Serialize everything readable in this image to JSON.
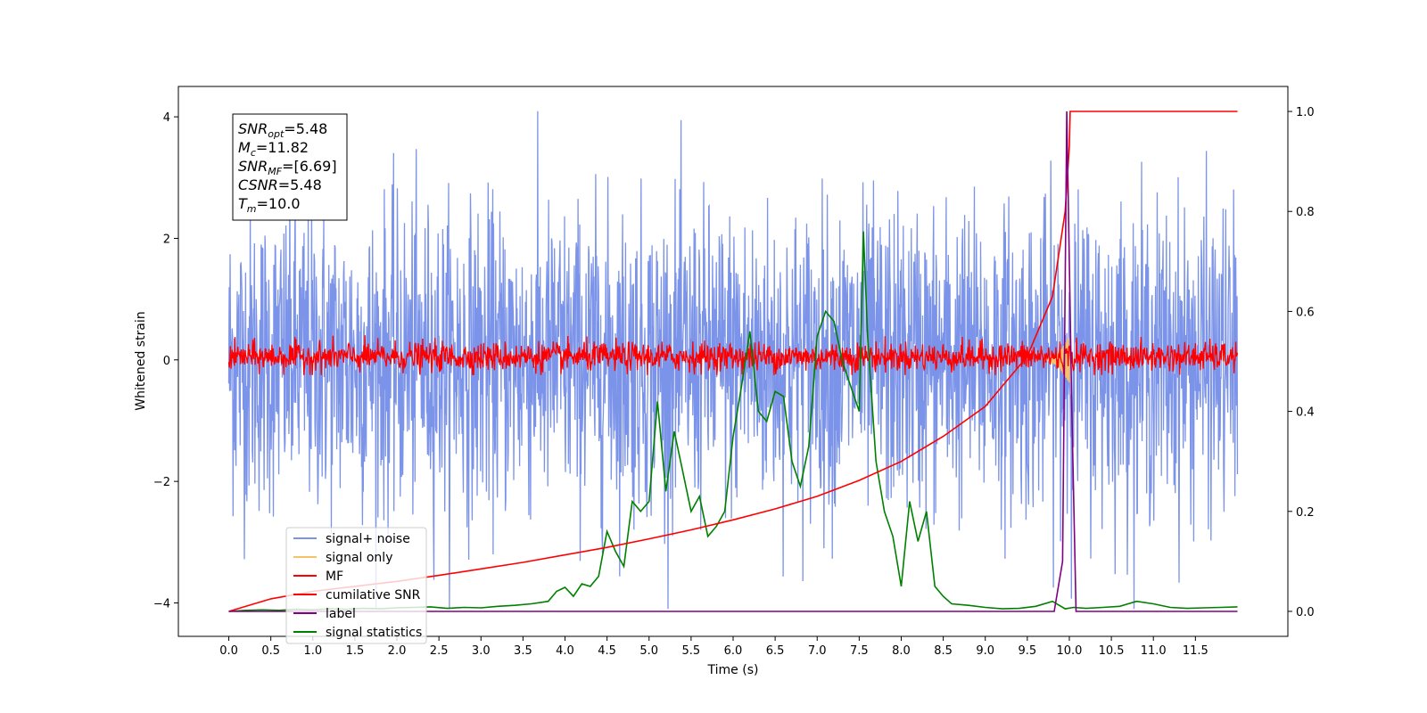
{
  "chart_data": {
    "type": "line",
    "xlabel": "Time (s)",
    "ylabel": "Whitened strain",
    "xlim": [
      -0.6,
      12.6
    ],
    "ylim": [
      -4.55,
      4.5
    ],
    "ylim_right": [
      -0.05,
      1.05
    ],
    "x_ticks": [
      "0.0",
      "0.5",
      "1.0",
      "1.5",
      "2.0",
      "2.5",
      "3.0",
      "3.5",
      "4.0",
      "4.5",
      "5.0",
      "5.5",
      "6.0",
      "6.5",
      "7.0",
      "7.5",
      "8.0",
      "8.5",
      "9.0",
      "9.5",
      "10.0",
      "10.5",
      "11.0",
      "11.5"
    ],
    "x_tick_values": [
      0,
      0.5,
      1,
      1.5,
      2,
      2.5,
      3,
      3.5,
      4,
      4.5,
      5,
      5.5,
      6,
      6.5,
      7,
      7.5,
      8,
      8.5,
      9,
      9.5,
      10,
      10.5,
      11,
      11.5
    ],
    "y_ticks_left": [
      "−4",
      "−2",
      "0",
      "2",
      "4"
    ],
    "y_tick_values_left": [
      -4,
      -2,
      0,
      2,
      4
    ],
    "y_ticks_right": [
      "0.0",
      "0.2",
      "0.4",
      "0.6",
      "0.8",
      "1.0"
    ],
    "y_tick_values_right": [
      0,
      0.2,
      0.4,
      0.6,
      0.8,
      1.0
    ],
    "annotation": {
      "lines": [
        {
          "sym": "SNR",
          "sub": "opt",
          "val": "=5.48"
        },
        {
          "sym": "M",
          "sub": "c",
          "val": "=11.82"
        },
        {
          "sym": "SNR",
          "sub": "MF",
          "val": "=[6.69]"
        },
        {
          "sym": "CSNR",
          "sub": "",
          "val": "=5.48"
        },
        {
          "sym": "T",
          "sub": "m",
          "val": "=10.0"
        }
      ]
    },
    "legend_position": "lower-left",
    "series": [
      {
        "name": "signal+ noise",
        "color": "#7b93e8",
        "axis": "left",
        "kind": "noise",
        "x_range": [
          0,
          12
        ],
        "amplitude_range": [
          -4.1,
          4.1
        ]
      },
      {
        "name": "signal only",
        "color": "#f5c26b",
        "axis": "left",
        "kind": "chirp",
        "x_range": [
          9.7,
          10.0
        ],
        "peak_amplitude": 0.4
      },
      {
        "name": "MF",
        "color": "#ff0000",
        "axis": "left",
        "kind": "noise",
        "x_range": [
          0,
          12
        ],
        "amplitude_range": [
          -0.25,
          0.45
        ]
      },
      {
        "name": "cumilative SNR",
        "color": "#ff0000",
        "axis": "right",
        "x": [
          0,
          0.5,
          1,
          1.5,
          2,
          2.5,
          3,
          3.5,
          4,
          4.5,
          5,
          5.5,
          6,
          6.5,
          7,
          7.5,
          8,
          8.5,
          9,
          9.5,
          9.8,
          9.95,
          10.0,
          10.01,
          12
        ],
        "y": [
          0.0,
          0.025,
          0.04,
          0.05,
          0.06,
          0.072,
          0.085,
          0.098,
          0.113,
          0.128,
          0.145,
          0.163,
          0.183,
          0.205,
          0.23,
          0.262,
          0.3,
          0.35,
          0.41,
          0.51,
          0.63,
          0.8,
          0.93,
          1.0,
          1.0
        ]
      },
      {
        "name": "label",
        "color": "#800080",
        "axis": "right",
        "x": [
          0,
          9.82,
          9.92,
          9.97,
          10.03,
          10.08,
          12
        ],
        "y": [
          0,
          0,
          0.1,
          1.0,
          0.4,
          0,
          0
        ]
      },
      {
        "name": "signal statistics",
        "color": "#008000",
        "axis": "right",
        "x": [
          0,
          0.2,
          0.4,
          0.6,
          0.8,
          1.0,
          1.2,
          1.4,
          1.6,
          1.8,
          2.0,
          2.2,
          2.4,
          2.6,
          2.8,
          3.0,
          3.2,
          3.4,
          3.6,
          3.8,
          3.9,
          4.0,
          4.1,
          4.2,
          4.3,
          4.4,
          4.5,
          4.6,
          4.7,
          4.8,
          4.9,
          5.0,
          5.1,
          5.2,
          5.3,
          5.4,
          5.5,
          5.6,
          5.7,
          5.8,
          5.9,
          6.0,
          6.1,
          6.2,
          6.3,
          6.4,
          6.5,
          6.6,
          6.7,
          6.8,
          6.9,
          7.0,
          7.1,
          7.2,
          7.3,
          7.4,
          7.5,
          7.55,
          7.6,
          7.7,
          7.8,
          7.9,
          8.0,
          8.1,
          8.2,
          8.3,
          8.4,
          8.5,
          8.6,
          8.8,
          9.0,
          9.2,
          9.4,
          9.6,
          9.8,
          9.95,
          10.05,
          10.2,
          10.4,
          10.6,
          10.8,
          11.0,
          11.2,
          11.4,
          11.6,
          11.8,
          12.0
        ],
        "y": [
          0.0,
          0.002,
          0.003,
          0.002,
          0.004,
          0.003,
          0.005,
          0.004,
          0.006,
          0.005,
          0.007,
          0.008,
          0.009,
          0.006,
          0.008,
          0.007,
          0.01,
          0.012,
          0.015,
          0.02,
          0.04,
          0.048,
          0.03,
          0.055,
          0.05,
          0.07,
          0.16,
          0.12,
          0.09,
          0.22,
          0.2,
          0.22,
          0.42,
          0.24,
          0.36,
          0.28,
          0.2,
          0.23,
          0.15,
          0.17,
          0.2,
          0.35,
          0.45,
          0.56,
          0.4,
          0.38,
          0.44,
          0.43,
          0.3,
          0.25,
          0.33,
          0.55,
          0.6,
          0.58,
          0.5,
          0.45,
          0.4,
          0.76,
          0.55,
          0.3,
          0.2,
          0.15,
          0.05,
          0.22,
          0.14,
          0.2,
          0.05,
          0.03,
          0.015,
          0.012,
          0.008,
          0.005,
          0.006,
          0.01,
          0.02,
          0.005,
          0.008,
          0.006,
          0.008,
          0.01,
          0.02,
          0.015,
          0.008,
          0.006,
          0.007,
          0.008,
          0.009
        ]
      }
    ]
  }
}
